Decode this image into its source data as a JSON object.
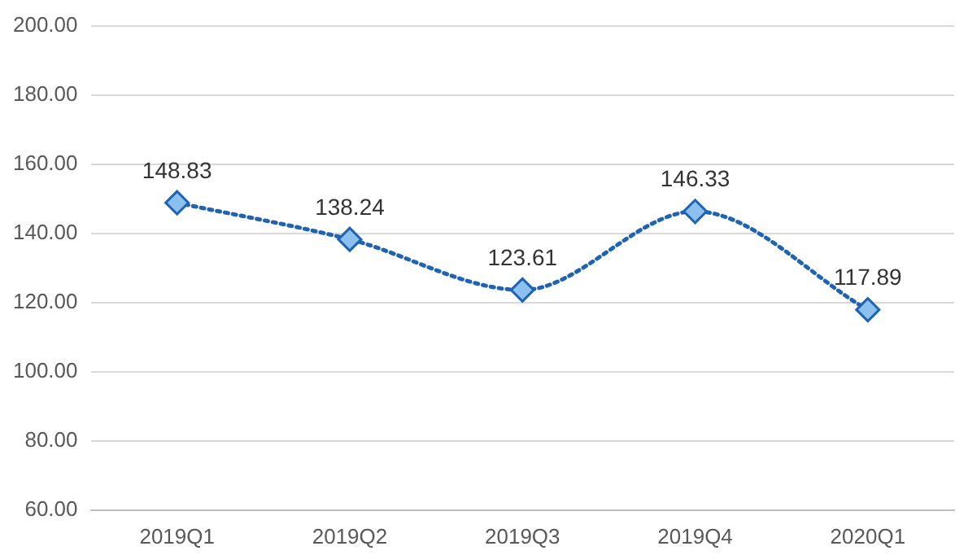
{
  "chart_data": {
    "type": "line",
    "categories": [
      "2019Q1",
      "2019Q2",
      "2019Q3",
      "2019Q4",
      "2020Q1"
    ],
    "series": [
      {
        "color": "#1f63b5",
        "values": [
          148.83,
          138.24,
          123.61,
          146.33,
          117.89
        ]
      }
    ],
    "ylim": [
      60,
      200
    ],
    "yticks": [
      {
        "value": 60,
        "label": "60.00"
      },
      {
        "value": 80,
        "label": "80.00"
      },
      {
        "value": 100,
        "label": "100.00"
      },
      {
        "value": 120,
        "label": "120.00"
      },
      {
        "value": 140,
        "label": "140.00"
      },
      {
        "value": 160,
        "label": "160.00"
      },
      {
        "value": 180,
        "label": "180.00"
      },
      {
        "value": 200,
        "label": "200.00"
      }
    ],
    "grid": "y",
    "legend": false,
    "marker": "diamond",
    "line_style": "dotted",
    "data_labels": true
  }
}
